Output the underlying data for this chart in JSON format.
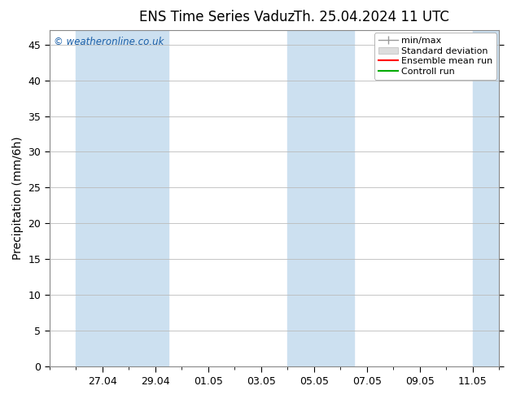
{
  "title_left": "ENS Time Series Vaduz",
  "title_right": "Th. 25.04.2024 11 UTC",
  "ylabel": "Precipitation (mm/6h)",
  "watermark": "© weatheronline.co.uk",
  "ylim": [
    0,
    47
  ],
  "yticks": [
    0,
    5,
    10,
    15,
    20,
    25,
    30,
    35,
    40,
    45
  ],
  "xtick_labels": [
    "27.04",
    "29.04",
    "01.05",
    "03.05",
    "05.05",
    "07.05",
    "09.05",
    "11.05"
  ],
  "xtick_positions": [
    2,
    4,
    6,
    8,
    10,
    12,
    14,
    16
  ],
  "xlim": [
    0,
    17
  ],
  "shaded_bands": [
    [
      1.0,
      2.0
    ],
    [
      2.0,
      4.5
    ],
    [
      9.0,
      10.5
    ],
    [
      10.5,
      11.5
    ],
    [
      16.0,
      17.0
    ]
  ],
  "shade_color": "#cce0f0",
  "background_color": "#ffffff",
  "grid_color": "#bbbbbb",
  "legend_items": [
    {
      "label": "min/max",
      "color": "#999999",
      "type": "minmax"
    },
    {
      "label": "Standard deviation",
      "color": "#cccccc",
      "type": "stddev"
    },
    {
      "label": "Ensemble mean run",
      "color": "#ff0000",
      "type": "line"
    },
    {
      "label": "Controll run",
      "color": "#00aa00",
      "type": "line"
    }
  ],
  "watermark_color": "#1a5fa8",
  "title_fontsize": 12,
  "tick_fontsize": 9,
  "ylabel_fontsize": 10,
  "legend_fontsize": 8
}
